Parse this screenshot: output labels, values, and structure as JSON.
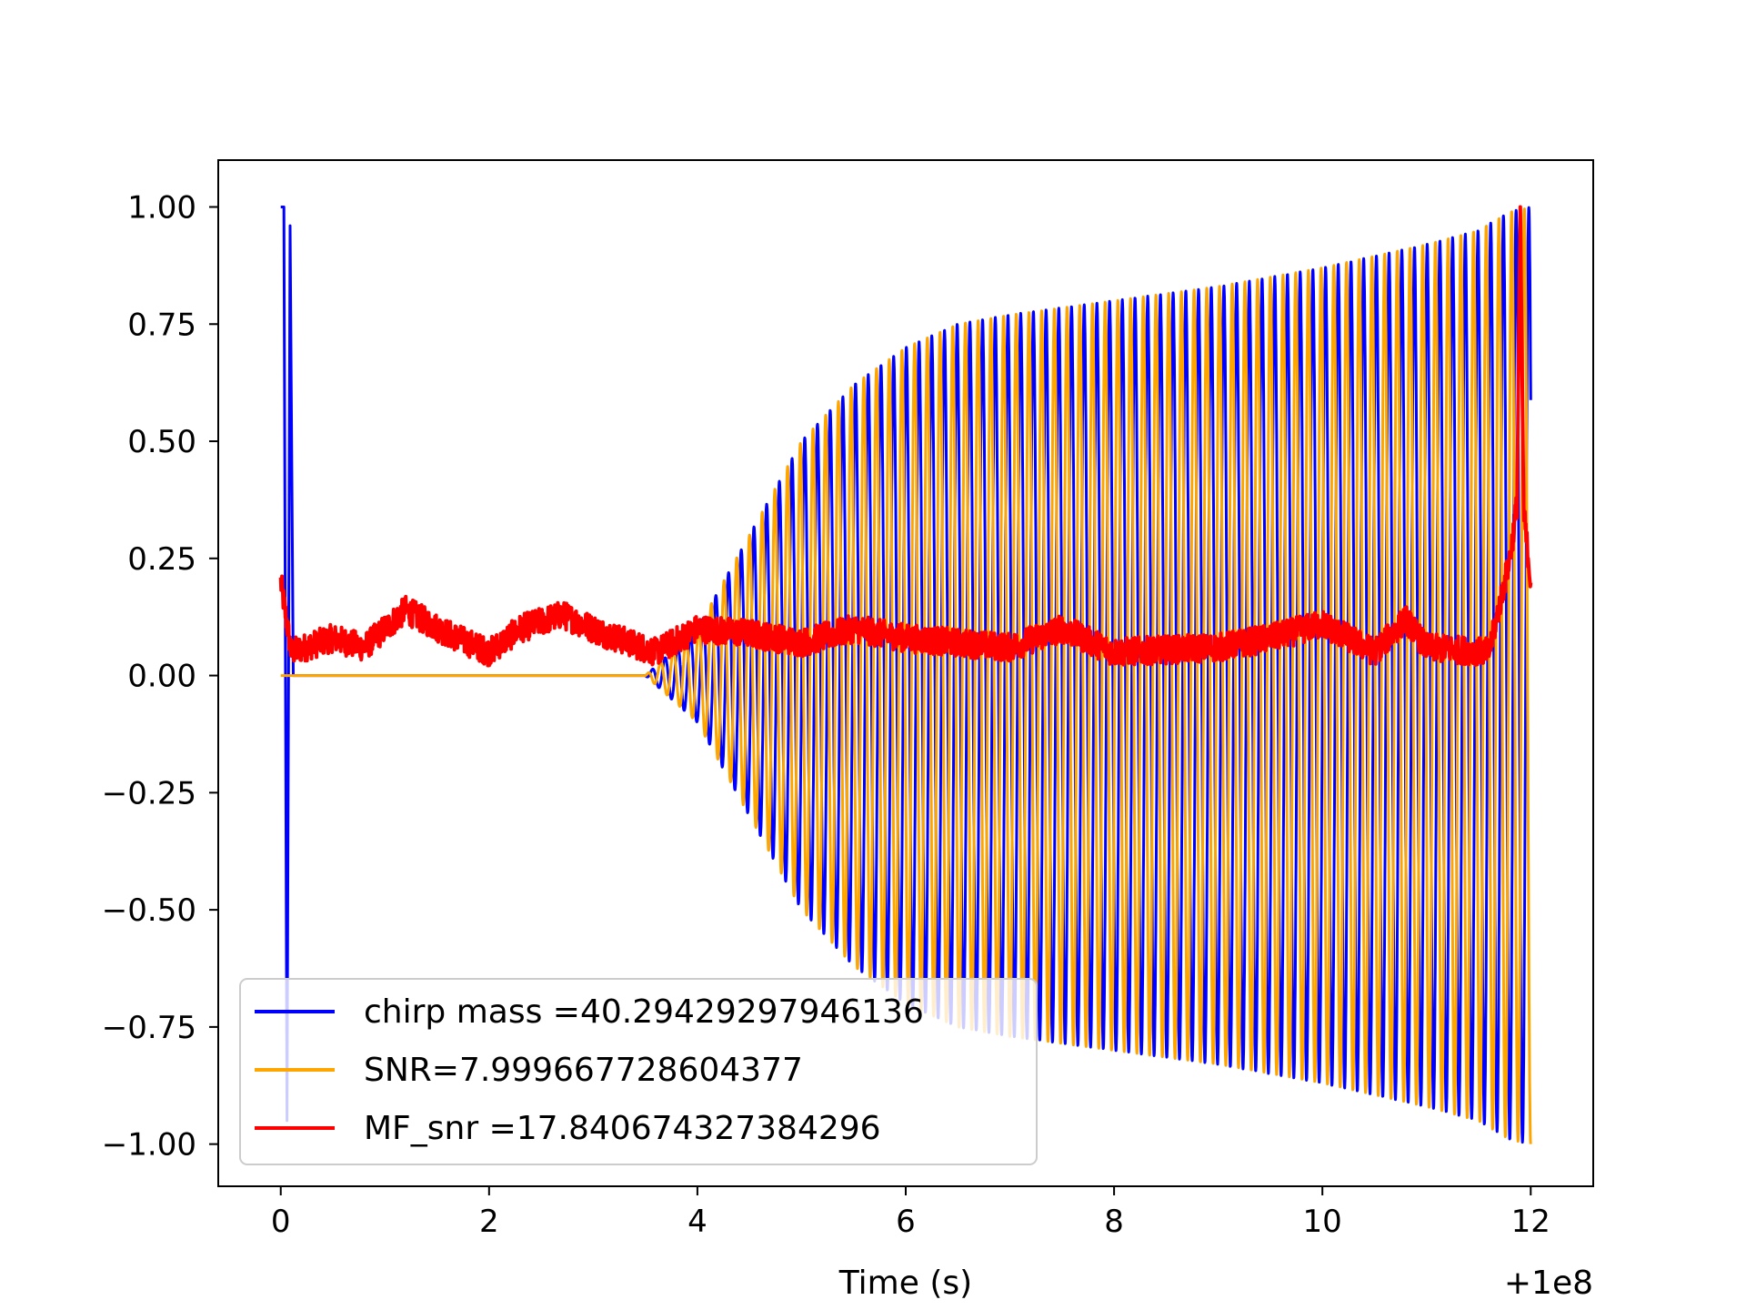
{
  "chart_data": {
    "type": "line",
    "title": "",
    "xlabel": "Time (s)",
    "ylabel": "",
    "x_offset_label": "+1e8",
    "xlim": [
      -0.6,
      12.6
    ],
    "ylim": [
      -1.09,
      1.1
    ],
    "xticks": [
      0,
      2,
      4,
      6,
      8,
      10,
      12
    ],
    "yticks": [
      1.0,
      0.75,
      0.5,
      0.25,
      0.0,
      -0.25,
      -0.5,
      -0.75,
      -1.0
    ],
    "xtick_labels": [
      "0",
      "2",
      "4",
      "6",
      "8",
      "10",
      "12"
    ],
    "ytick_labels": [
      "1.00",
      "0.75",
      "0.50",
      "0.25",
      "0.00",
      "−0.25",
      "−0.50",
      "−0.75",
      "−1.00"
    ],
    "grid": false,
    "legend_position": "lower-left",
    "series": [
      {
        "name": "chirp mass =40.29429297946136",
        "color": "#0000ff",
        "envelope": {
          "t": [
            0,
            3.5,
            4.0,
            4.5,
            5.0,
            5.5,
            6.0,
            6.5,
            7.0,
            8.0,
            9.0,
            10.0,
            11.0,
            11.5,
            11.8,
            12.0
          ],
          "a": [
            0.0,
            0.0,
            0.1,
            0.3,
            0.5,
            0.62,
            0.7,
            0.75,
            0.77,
            0.8,
            0.83,
            0.87,
            0.92,
            0.95,
            0.99,
            1.0
          ]
        },
        "cycles_per_second": 8.2,
        "initial_spike": [
          {
            "x": 0.0,
            "y": 1.0
          },
          {
            "x": 0.03,
            "y": 1.0
          },
          {
            "x": 0.06,
            "y": -0.95
          },
          {
            "x": 0.09,
            "y": 0.96
          },
          {
            "x": 0.12,
            "y": 0.0
          }
        ]
      },
      {
        "name": "SNR=7.999667728604377",
        "color": "#ffa500",
        "envelope": {
          "t": [
            0,
            3.5,
            4.0,
            4.5,
            5.0,
            5.5,
            6.0,
            6.5,
            7.0,
            8.0,
            9.0,
            10.0,
            11.0,
            11.5,
            11.8,
            12.0
          ],
          "a": [
            0.0,
            0.0,
            0.1,
            0.3,
            0.5,
            0.62,
            0.7,
            0.75,
            0.77,
            0.8,
            0.83,
            0.87,
            0.92,
            0.95,
            0.99,
            1.0
          ]
        },
        "cycles_per_second": 8.2,
        "phase_offset": 0.35
      },
      {
        "name": "MF_snr =17.840674327384296",
        "color": "#ff0000",
        "trend": [
          {
            "x": 0.0,
            "y": 0.2
          },
          {
            "x": 0.1,
            "y": 0.05
          },
          {
            "x": 0.5,
            "y": 0.08
          },
          {
            "x": 0.8,
            "y": 0.06
          },
          {
            "x": 1.2,
            "y": 0.14
          },
          {
            "x": 1.6,
            "y": 0.09
          },
          {
            "x": 2.0,
            "y": 0.05
          },
          {
            "x": 2.3,
            "y": 0.1
          },
          {
            "x": 2.7,
            "y": 0.13
          },
          {
            "x": 3.1,
            "y": 0.09
          },
          {
            "x": 3.6,
            "y": 0.05
          },
          {
            "x": 4.0,
            "y": 0.1
          },
          {
            "x": 4.5,
            "y": 0.09
          },
          {
            "x": 5.0,
            "y": 0.07
          },
          {
            "x": 5.5,
            "y": 0.1
          },
          {
            "x": 6.0,
            "y": 0.08
          },
          {
            "x": 7.0,
            "y": 0.06
          },
          {
            "x": 7.5,
            "y": 0.1
          },
          {
            "x": 8.0,
            "y": 0.05
          },
          {
            "x": 9.0,
            "y": 0.06
          },
          {
            "x": 9.5,
            "y": 0.08
          },
          {
            "x": 10.0,
            "y": 0.11
          },
          {
            "x": 10.5,
            "y": 0.05
          },
          {
            "x": 10.8,
            "y": 0.12
          },
          {
            "x": 11.0,
            "y": 0.06
          },
          {
            "x": 11.6,
            "y": 0.05
          },
          {
            "x": 11.8,
            "y": 0.25
          },
          {
            "x": 11.9,
            "y": 0.42
          },
          {
            "x": 12.0,
            "y": 0.2
          }
        ],
        "noise_amplitude": 0.03,
        "peak": {
          "x": 11.9,
          "y": 1.0
        }
      }
    ]
  }
}
